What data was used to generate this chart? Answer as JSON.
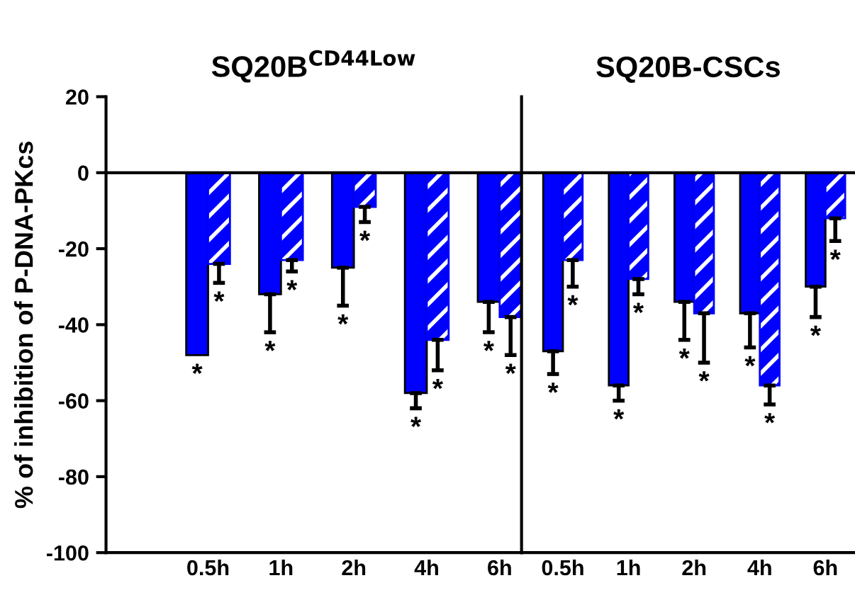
{
  "chart_data": [
    {
      "type": "bar",
      "title": "SQ20B$^{CD44Low}$",
      "ylabel": "% of inhibition of P-DNA-PKcs",
      "categories": [
        "0.5h",
        "1h",
        "2h",
        "4h",
        "6h"
      ],
      "ylim": [
        -100,
        20
      ],
      "yticks": [
        -100,
        -80,
        -60,
        -40,
        -20,
        0,
        20
      ],
      "grid": false,
      "legend": false,
      "ref_lines": [
        {
          "axis": "y",
          "value": 0
        }
      ],
      "series": [
        {
          "color": "#0000ff",
          "values": [
            -48,
            -32,
            -25,
            -58,
            -34
          ],
          "errors": [
            null,
            10,
            10,
            4,
            8
          ],
          "value_labels": [
            "*",
            "*",
            "*",
            "*",
            "*"
          ]
        },
        {
          "color": "#0000ff",
          "values": [
            -24,
            -23,
            -9,
            -44,
            -38
          ],
          "errors": [
            5,
            3,
            4,
            8,
            10
          ],
          "value_labels": [
            "*",
            "*",
            "*",
            "*",
            "*"
          ]
        }
      ]
    },
    {
      "type": "bar",
      "title": "SQ20B-CSCs",
      "categories": [
        "0.5h",
        "1h",
        "2h",
        "4h",
        "6h"
      ],
      "ylim": [
        -100,
        20
      ],
      "yticks": [
        -100,
        -80,
        -60,
        -40,
        -20,
        0,
        20
      ],
      "tick_labels": "x",
      "grid": false,
      "legend": false,
      "ref_lines": [
        {
          "axis": "y",
          "value": 0
        }
      ],
      "series": [
        {
          "color": "#0000ff",
          "values": [
            -47,
            -56,
            -34,
            -37,
            -30
          ],
          "errors": [
            6,
            4,
            10,
            9,
            8
          ],
          "value_labels": [
            "*",
            "*",
            "*",
            "*",
            "*"
          ]
        },
        {
          "color": "#0000ff",
          "values": [
            -23,
            -28,
            -37,
            -56,
            -12
          ],
          "errors": [
            7,
            4,
            13,
            5,
            6
          ],
          "value_labels": [
            "*",
            "*",
            "*",
            "*",
            "*"
          ]
        }
      ]
    }
  ]
}
